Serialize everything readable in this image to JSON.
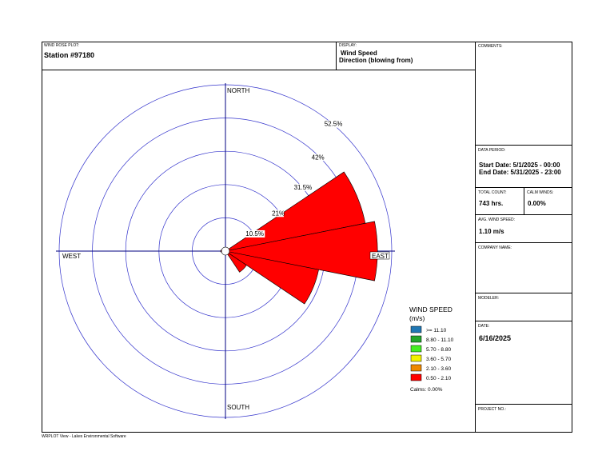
{
  "header": {
    "plot_caption": "WIND ROSE PLOT:",
    "station": "Station #97180",
    "display_caption": "DISPLAY:",
    "display_line1": "Wind Speed",
    "display_line2": "Direction (blowing from)"
  },
  "side": {
    "comments_caption": "COMMENTS:",
    "data_period_caption": "DATA PERIOD:",
    "start_date": "Start Date: 5/1/2025 - 00:00",
    "end_date": "End Date: 5/31/2025 - 23:00",
    "total_count_caption": "TOTAL COUNT:",
    "total_count": "743 hrs.",
    "calm_caption": "CALM WINDS:",
    "calm_value": "0.00%",
    "avg_caption": "AVG. WIND SPEED:",
    "avg_value": "1.10 m/s",
    "company_caption": "COMPANY NAME:",
    "modeler_caption": "MODELER:",
    "date_caption": "DATE:",
    "date_value": "6/16/2025",
    "project_caption": "PROJECT NO.:"
  },
  "footer": "WRPLOT View - Lakes Environmental Software",
  "chart_data": {
    "type": "wind_rose",
    "directions": [
      "N",
      "NNE",
      "NE",
      "ENE",
      "E",
      "ESE",
      "SE",
      "SSE",
      "S",
      "SSW",
      "SW",
      "WSW",
      "W",
      "WNW",
      "NW",
      "NNW"
    ],
    "values_percent": [
      0,
      0,
      0,
      45,
      48,
      30,
      8,
      0,
      0,
      0,
      0,
      0,
      1.5,
      0,
      0,
      0
    ],
    "rings_percent": [
      10.5,
      21,
      31.5,
      42,
      52.5
    ],
    "ring_labels": [
      "10.5%",
      "21%",
      "31.5%",
      "42%",
      "52.5%"
    ],
    "compass": {
      "north": "NORTH",
      "south": "SOUTH",
      "east": "EAST",
      "west": "WEST"
    },
    "legend": {
      "title": "WIND SPEED",
      "unit": "(m/s)",
      "classes": [
        {
          "label": ">= 11.10",
          "color": "#1f77b4"
        },
        {
          "label": "8.80 - 11.10",
          "color": "#22a52a"
        },
        {
          "label": "5.70 - 8.80",
          "color": "#44ee22"
        },
        {
          "label": "3.60 - 5.70",
          "color": "#f2f200"
        },
        {
          "label": "2.10 - 3.60",
          "color": "#ee8800"
        },
        {
          "label": "0.50 - 2.10",
          "color": "#ff0000"
        }
      ],
      "calms": "Calms: 0.00%"
    },
    "colors": {
      "ring": "#3333cc",
      "axis": "#000080",
      "petal": "#ff0000"
    }
  }
}
